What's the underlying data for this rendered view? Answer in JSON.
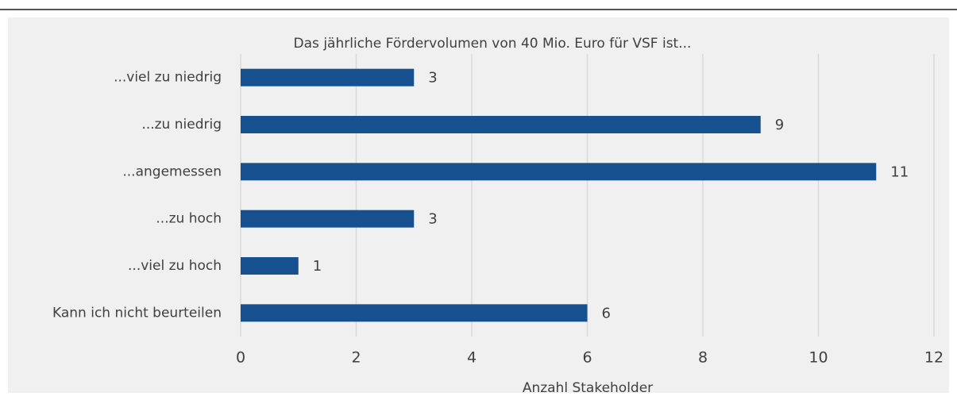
{
  "chart_data": {
    "type": "bar",
    "orientation": "horizontal",
    "title": "Das jährliche Fördervolumen von 40 Mio. Euro für VSF ist...",
    "x_label": "Anzahl Stakeholder",
    "categories": [
      "...viel zu niedrig",
      "...zu niedrig",
      "...angemessen",
      "...zu hoch",
      "...viel zu hoch",
      "Kann ich nicht beurteilen"
    ],
    "values": [
      3,
      9,
      11,
      3,
      1,
      6
    ],
    "color": "#17508f",
    "xlim": [
      0,
      12
    ],
    "xticks": [
      0,
      2,
      4,
      6,
      8,
      10,
      12
    ],
    "grid": true
  }
}
